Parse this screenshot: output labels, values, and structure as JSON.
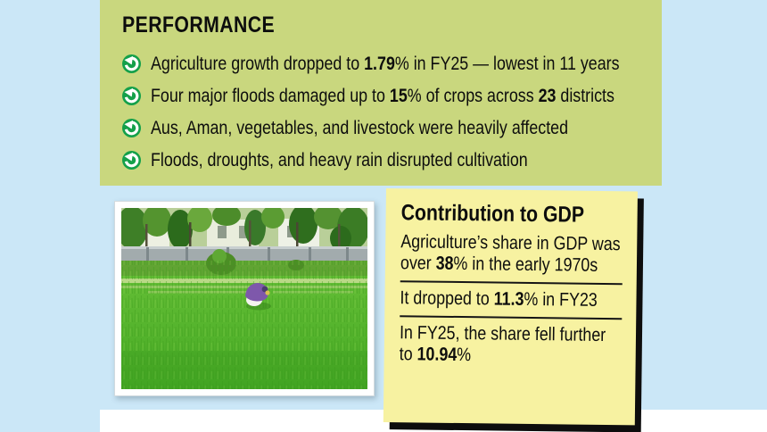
{
  "colors": {
    "background_blue": "#cbe7f7",
    "panel_green": "#c9d77e",
    "note_yellow": "#f7f2a1",
    "bullet_icon_green": "#14a04a",
    "text_black": "#0d0d0d",
    "bottom_strip_white": "#ffffff",
    "note_shadow_black": "#0d0d0d"
  },
  "performance": {
    "title": "PERFORMANCE",
    "bullets": [
      {
        "segments": [
          {
            "t": "Agriculture growth dropped to "
          },
          {
            "t": "1.79",
            "b": true
          },
          {
            "t": "% in FY25 — lowest in 11 years"
          }
        ]
      },
      {
        "segments": [
          {
            "t": "Four major floods damaged up to "
          },
          {
            "t": "15",
            "b": true
          },
          {
            "t": "% of crops across "
          },
          {
            "t": "23",
            "b": true
          },
          {
            "t": " districts"
          }
        ]
      },
      {
        "segments": [
          {
            "t": "Aus, Aman, vegetables, and livestock were heavily affected"
          }
        ]
      },
      {
        "segments": [
          {
            "t": "Floods, droughts, and heavy rain disrupted cultivation"
          }
        ]
      }
    ]
  },
  "gdp_note": {
    "title": "Contribution to GDP",
    "items": [
      {
        "segments": [
          {
            "t": "Agriculture’s share in GDP was over "
          },
          {
            "t": "38",
            "b": true
          },
          {
            "t": "% in the early 1970s"
          }
        ]
      },
      {
        "segments": [
          {
            "t": "It dropped to "
          },
          {
            "t": "11.3",
            "b": true
          },
          {
            "t": "% in FY23"
          }
        ]
      },
      {
        "segments": [
          {
            "t": "In FY25, the share fell further to "
          },
          {
            "t": "10.94",
            "b": true
          },
          {
            "t": "%"
          }
        ]
      }
    ]
  },
  "photo": {
    "description": "Farmer bending over crops in a bright green paddy field, with trees, buildings and a boundary wall in the background"
  }
}
